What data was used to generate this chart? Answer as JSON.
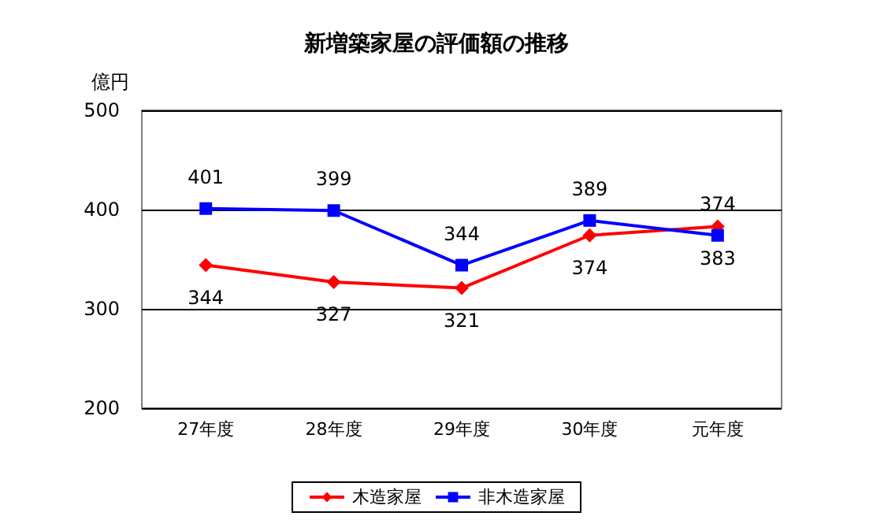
{
  "chart_data": {
    "type": "line",
    "title": "新増築家屋の評価額の推移",
    "ylabel": "億円",
    "categories": [
      "27年度",
      "28年度",
      "29年度",
      "30年度",
      "元年度"
    ],
    "series": [
      {
        "name": "木造家屋",
        "color": "#ff0000",
        "marker": "diamond",
        "values": [
          344,
          327,
          321,
          374,
          383
        ]
      },
      {
        "name": "非木造家屋",
        "color": "#0000ff",
        "marker": "square",
        "values": [
          401,
          399,
          344,
          389,
          374
        ]
      }
    ],
    "ylim": [
      200,
      500
    ],
    "yticks": [
      200,
      300,
      400,
      500
    ],
    "grid": "y",
    "legend": "bottom",
    "data_labels": true
  }
}
